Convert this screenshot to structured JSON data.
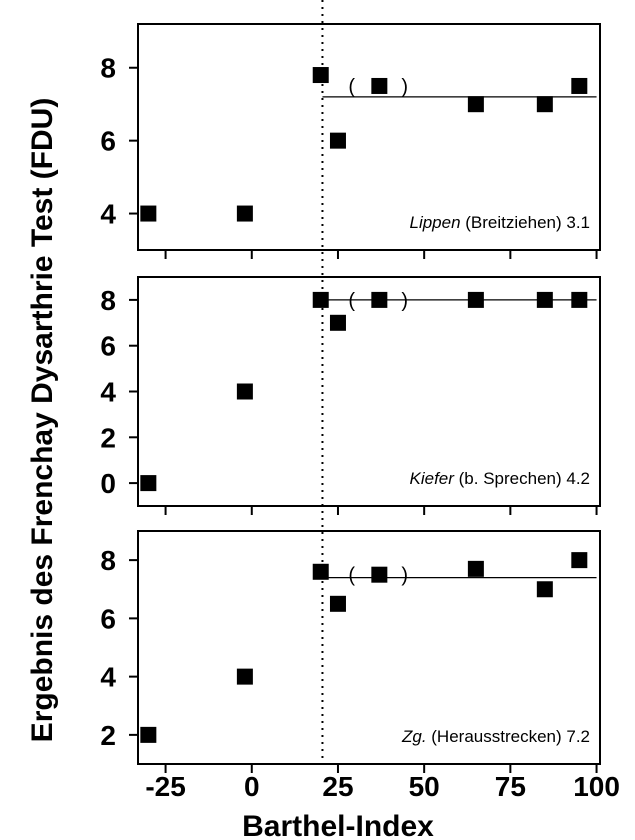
{
  "chart_data": {
    "type": "scatter",
    "ylabel": "Ergebnis des Frenchay Dysarthrie Test (FDU)",
    "xlabel": "Barthel-Index",
    "x_ticks": [
      -25,
      0,
      25,
      50,
      75,
      100
    ],
    "x_tick_labels": [
      "-25",
      "0",
      "25",
      "50",
      "75",
      "100"
    ],
    "xlim": [
      -33,
      101
    ],
    "vline_x": 20.5,
    "panels": [
      {
        "label_italic": "Lippen",
        "label_rest": " (Breitziehen) 3.1",
        "ylim": [
          3.0,
          9.2
        ],
        "y_ticks": [
          4,
          6,
          8
        ],
        "hline_y": 7.2,
        "hline_x": [
          20.5,
          100
        ],
        "paren_x": 37,
        "points": [
          {
            "x": -30,
            "y": 4
          },
          {
            "x": -2,
            "y": 4
          },
          {
            "x": 20,
            "y": 7.8
          },
          {
            "x": 25,
            "y": 6
          },
          {
            "x": 37,
            "y": 7.5
          },
          {
            "x": 65,
            "y": 7
          },
          {
            "x": 85,
            "y": 7
          },
          {
            "x": 95,
            "y": 7.5
          }
        ]
      },
      {
        "label_italic": "Kiefer",
        "label_rest": " (b. Sprechen) 4.2",
        "ylim": [
          -1.0,
          9.0
        ],
        "y_ticks": [
          0,
          2,
          4,
          6,
          8
        ],
        "hline_y": 8,
        "hline_x": [
          20.5,
          100
        ],
        "paren_x": 37,
        "points": [
          {
            "x": -30,
            "y": 0
          },
          {
            "x": -2,
            "y": 4
          },
          {
            "x": 20,
            "y": 8
          },
          {
            "x": 25,
            "y": 7
          },
          {
            "x": 37,
            "y": 8
          },
          {
            "x": 65,
            "y": 8
          },
          {
            "x": 85,
            "y": 8
          },
          {
            "x": 95,
            "y": 8
          }
        ]
      },
      {
        "label_italic": "Zg.",
        "label_rest": " (Herausstrecken) 7.2",
        "ylim": [
          1.0,
          9.0
        ],
        "y_ticks": [
          2,
          4,
          6,
          8
        ],
        "hline_y": 7.4,
        "hline_x": [
          20.5,
          100
        ],
        "paren_x": 37,
        "points": [
          {
            "x": -30,
            "y": 2
          },
          {
            "x": -2,
            "y": 4
          },
          {
            "x": 20,
            "y": 7.6
          },
          {
            "x": 25,
            "y": 6.5
          },
          {
            "x": 37,
            "y": 7.5
          },
          {
            "x": 65,
            "y": 7.7
          },
          {
            "x": 85,
            "y": 7
          },
          {
            "x": 95,
            "y": 8
          }
        ]
      }
    ]
  }
}
